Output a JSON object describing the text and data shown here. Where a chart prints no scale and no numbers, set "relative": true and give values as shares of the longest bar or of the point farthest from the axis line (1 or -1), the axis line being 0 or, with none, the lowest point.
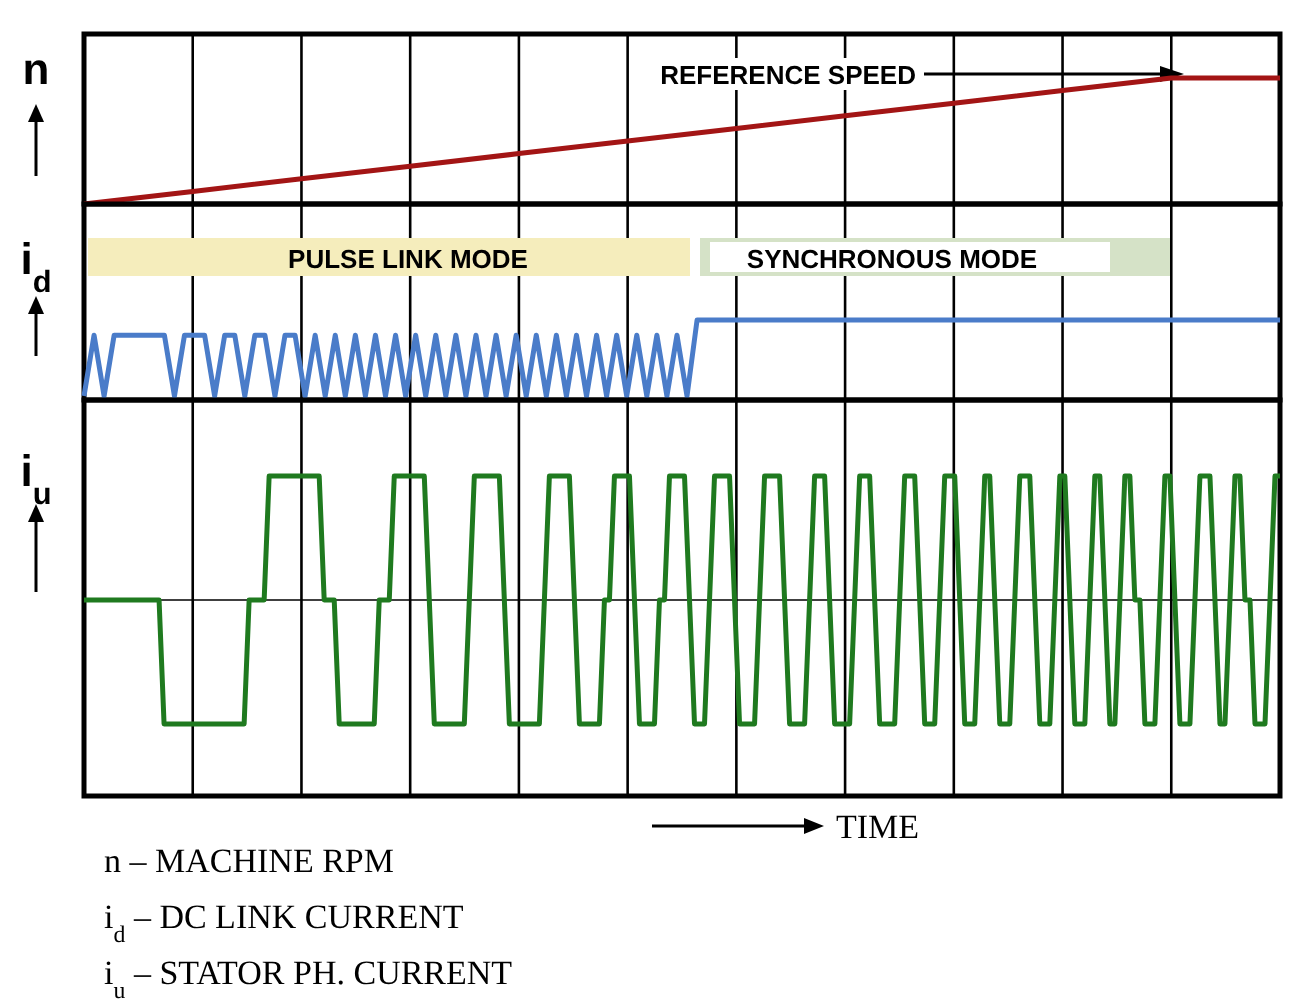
{
  "chart_data": [
    {
      "type": "line",
      "relative": true,
      "grid": "x",
      "ylabel": "n",
      "annotations": [
        "REFERENCE SPEED"
      ],
      "categories": [
        null,
        null,
        null,
        null,
        null,
        null,
        null,
        null,
        null,
        null,
        null,
        null
      ],
      "series": [
        {
          "color": "#a31515",
          "values": [
            0,
            0.1,
            0.2,
            0.3,
            0.4,
            0.5,
            0.6,
            0.7,
            0.8,
            0.9,
            1,
            1
          ]
        }
      ]
    },
    {
      "type": "line",
      "relative": true,
      "grid": "x",
      "ylabel": "i$_{d}$",
      "annotations": [
        "PULSE LINK MODE",
        "SYNCHRONOUS MODE"
      ],
      "categories": [
        null,
        null,
        null,
        null,
        null,
        null,
        null,
        null,
        null,
        null,
        null,
        null,
        null,
        null,
        null,
        null,
        null,
        null,
        null,
        null,
        null,
        null,
        null,
        null,
        null,
        null,
        null,
        null,
        null,
        null,
        null,
        null,
        null,
        null,
        null,
        null,
        null,
        null,
        null,
        null,
        null,
        null,
        null,
        null,
        null,
        null,
        null,
        null,
        null,
        null,
        null,
        null,
        null,
        null,
        null,
        null,
        null,
        null,
        null,
        null,
        null,
        null,
        null,
        null,
        null,
        null,
        null,
        null,
        null,
        null,
        null,
        null,
        null,
        null,
        null,
        null,
        null,
        null,
        null,
        null,
        null,
        null,
        null,
        null,
        null,
        null,
        null,
        null,
        null,
        null,
        null,
        null,
        null,
        null,
        null,
        null,
        null,
        null,
        null,
        null,
        null,
        null,
        null,
        null,
        null,
        null,
        null,
        null,
        null,
        null,
        null,
        null,
        null,
        null,
        null,
        null,
        null,
        null,
        null,
        null
      ],
      "series": [
        {
          "color": "#4a7cc9",
          "values": [
            0,
            0.8,
            0,
            0.8,
            0.8,
            0.8,
            0.8,
            0.8,
            0.8,
            0,
            0.8,
            0.8,
            0.8,
            0,
            0.8,
            0.8,
            0,
            0.8,
            0.8,
            0,
            0.8,
            0.8,
            0,
            0.8,
            0,
            0.8,
            0,
            0.8,
            0,
            0.8,
            0,
            0.8,
            0,
            0.8,
            0,
            0.8,
            0,
            0.8,
            0,
            0.8,
            0,
            0.8,
            0,
            0.8,
            0,
            0.8,
            0,
            0.8,
            0,
            0.8,
            0,
            0.8,
            0,
            0.8,
            0,
            0.8,
            0,
            0.8,
            0,
            0.8,
            0,
            1,
            1,
            1,
            1,
            1,
            1,
            1,
            1,
            1,
            1,
            1,
            1,
            1,
            1,
            1,
            1,
            1,
            1,
            1,
            1,
            1,
            1,
            1,
            1,
            1,
            1,
            1,
            1,
            1,
            1,
            1,
            1,
            1,
            1,
            1,
            1,
            1,
            1,
            1,
            1,
            1,
            1,
            1,
            1,
            1,
            1,
            1,
            1,
            1,
            1,
            1,
            1,
            1,
            1,
            1,
            1,
            1,
            1,
            1
          ]
        }
      ]
    },
    {
      "type": "line",
      "relative": true,
      "grid": "x",
      "ylabel": "i$_{u}$",
      "xlabel": "TIME",
      "annotations": [
        "n – MACHINE RPM",
        "i$_{d}$ – DC LINK CURRENT",
        "i$_{u}$ – STATOR PH. CURRENT"
      ],
      "categories": [
        null,
        null,
        null,
        null,
        null,
        null,
        null,
        null,
        null,
        null,
        null,
        null,
        null,
        null,
        null,
        null,
        null,
        null,
        null,
        null,
        null,
        null,
        null,
        null,
        null,
        null,
        null,
        null,
        null,
        null,
        null,
        null,
        null,
        null,
        null,
        null,
        null,
        null,
        null,
        null,
        null,
        null,
        null,
        null,
        null,
        null,
        null,
        null,
        null,
        null,
        null,
        null,
        null,
        null,
        null,
        null,
        null,
        null,
        null,
        null,
        null,
        null,
        null,
        null,
        null,
        null,
        null,
        null,
        null,
        null,
        null,
        null,
        null,
        null,
        null,
        null,
        null,
        null,
        null,
        null,
        null,
        null,
        null,
        null,
        null,
        null,
        null,
        null,
        null,
        null,
        null,
        null,
        null,
        null,
        null,
        null,
        null,
        null,
        null,
        null,
        null,
        null,
        null,
        null,
        null,
        null,
        null,
        null,
        null,
        null,
        null,
        null,
        null,
        null,
        null,
        null,
        null,
        null,
        null,
        null,
        null,
        null,
        null,
        null,
        null,
        null,
        null,
        null,
        null,
        null,
        null,
        null,
        null,
        null,
        null,
        null,
        null,
        null,
        null,
        null,
        null,
        null,
        null,
        null,
        null,
        null,
        null,
        null,
        null,
        null,
        null,
        null,
        null,
        null,
        null,
        null,
        null,
        null,
        null,
        null,
        null,
        null,
        null,
        null,
        null,
        null,
        null,
        null,
        null,
        null,
        null,
        null,
        null,
        null,
        null,
        null,
        null,
        null,
        null,
        null,
        null,
        null,
        null,
        null,
        null,
        null,
        null,
        null,
        null,
        null,
        null,
        null,
        null,
        null,
        null,
        null,
        null,
        null,
        null,
        null,
        null,
        null,
        null,
        null,
        null,
        null,
        null,
        null,
        null,
        null,
        null,
        null,
        null,
        null,
        null,
        null,
        null,
        null,
        null,
        null,
        null,
        null,
        null,
        null,
        null,
        null,
        null,
        null,
        null,
        null,
        null,
        null,
        null,
        null,
        null,
        null,
        null,
        null,
        null,
        null
      ],
      "series": [
        {
          "color": "#1f7a1f",
          "values": [
            0,
            0,
            0,
            0,
            0,
            0,
            0,
            0,
            0,
            0,
            0,
            0,
            0,
            0,
            0,
            0,
            -1,
            -1,
            -1,
            -1,
            -1,
            -1,
            -1,
            -1,
            -1,
            -1,
            -1,
            -1,
            -1,
            -1,
            -1,
            -1,
            -1,
            0,
            0,
            0,
            0,
            1,
            1,
            1,
            1,
            1,
            1,
            1,
            1,
            1,
            1,
            1,
            0,
            0,
            0,
            -1,
            -1,
            -1,
            -1,
            -1,
            -1,
            -1,
            -1,
            0,
            0,
            0,
            1,
            1,
            1,
            1,
            1,
            1,
            1,
            0,
            -1,
            -1,
            -1,
            -1,
            -1,
            -1,
            -1,
            0,
            1,
            1,
            1,
            1,
            1,
            1,
            0,
            -1,
            -1,
            -1,
            -1,
            -1,
            -1,
            -1,
            0,
            1,
            1,
            1,
            1,
            1,
            0,
            -1,
            -1,
            -1,
            -1,
            -1,
            0,
            0,
            1,
            1,
            1,
            1,
            0,
            -1,
            -1,
            -1,
            -1,
            0,
            0,
            1,
            1,
            1,
            1,
            0,
            -1,
            -1,
            -1,
            0,
            1,
            1,
            1,
            1,
            0,
            -1,
            -1,
            -1,
            -1,
            0,
            1,
            1,
            1,
            1,
            0,
            -1,
            -1,
            -1,
            -1,
            0,
            1,
            1,
            1,
            0,
            -1,
            -1,
            -1,
            -1,
            0,
            1,
            1,
            1,
            0,
            -1,
            -1,
            -1,
            -1,
            0,
            1,
            1,
            1,
            0,
            -1,
            -1,
            -1,
            0,
            1,
            1,
            1,
            0,
            -1,
            -1,
            -1,
            0,
            1,
            1,
            0,
            -1,
            -1,
            -1,
            0,
            1,
            1,
            1,
            0,
            -1,
            -1,
            -1,
            0,
            1,
            1,
            0,
            -1,
            -1,
            -1,
            0,
            1,
            1,
            0,
            -1,
            -1,
            0,
            1,
            1,
            0,
            0,
            -1,
            -1,
            -1,
            0,
            1,
            1,
            0,
            -1,
            -1,
            -1,
            0,
            1,
            1,
            1,
            0,
            -1,
            -1,
            0,
            1,
            1,
            0,
            0,
            -1,
            -1,
            -1,
            0,
            1,
            1
          ]
        }
      ]
    }
  ]
}
